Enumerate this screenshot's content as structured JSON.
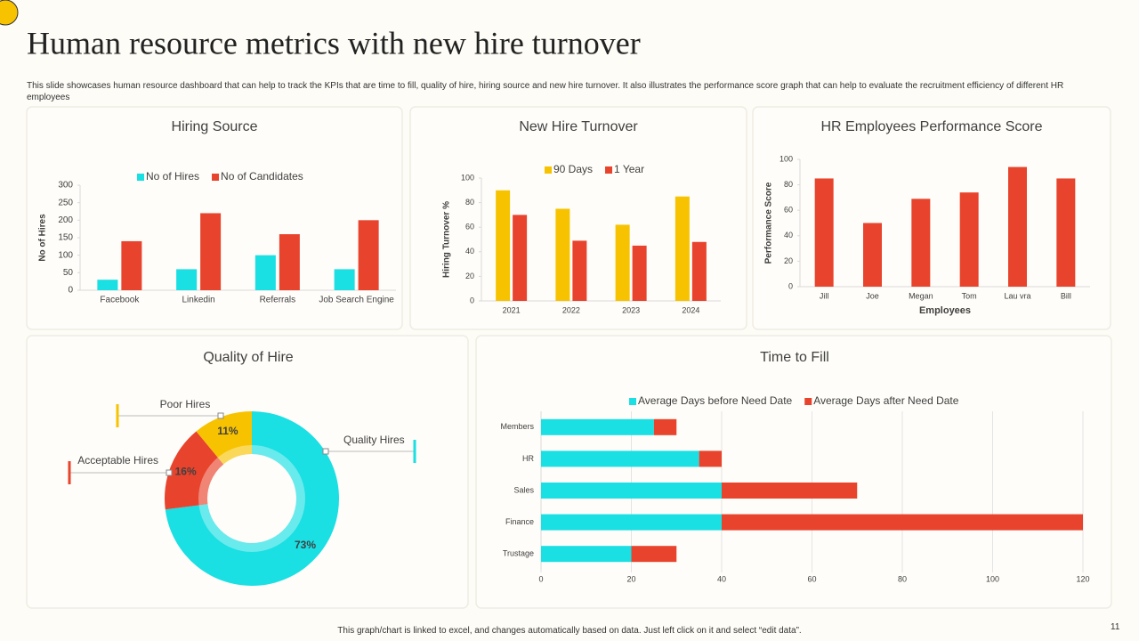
{
  "title": "Human resource metrics with new hire turnover",
  "description": "This slide showcases human resource dashboard that can help to track the KPIs  that are time  to fill, quality of hire, hiring source and new hire turnover. It also illustrates the performance score graph that can help to evaluate the recruitment efficiency of different HR employees",
  "footer": "This graph/chart is linked to excel, and changes automatically based on data. Just left click on it and select “edit data”.",
  "page_number": "11",
  "chart_data": [
    {
      "type": "bar",
      "title": "Hiring Source",
      "y_label": "No of Hires",
      "categories": [
        "Facebook",
        "Linkedin",
        "Referrals",
        "Job Search Engine"
      ],
      "series": [
        {
          "name": "No of Hires",
          "color": "#1adfe3",
          "values": [
            30,
            60,
            100,
            60
          ]
        },
        {
          "name": "No of Candidates",
          "color": "#e8432c",
          "values": [
            140,
            220,
            160,
            200
          ]
        }
      ],
      "ylim": [
        0,
        300
      ],
      "yticks": [
        0,
        50,
        100,
        150,
        200,
        250,
        300
      ],
      "grid": false,
      "legend": "top"
    },
    {
      "type": "bar",
      "title": "New Hire Turnover",
      "y_label": "Hiring Turnover %",
      "categories": [
        "2021",
        "2022",
        "2023",
        "2024"
      ],
      "series": [
        {
          "name": "90 Days",
          "color": "#f7c300",
          "values": [
            90,
            75,
            62,
            85
          ]
        },
        {
          "name": "1 Year",
          "color": "#e8432c",
          "values": [
            70,
            49,
            45,
            48
          ]
        }
      ],
      "ylim": [
        0,
        100
      ],
      "yticks": [
        0,
        20,
        40,
        60,
        80,
        100
      ],
      "grid": false,
      "legend": "top"
    },
    {
      "type": "bar",
      "title": "HR Employees Performance Score",
      "y_label": "Performance Score",
      "x_label": "Employees",
      "categories": [
        "Jill",
        "Joe",
        "Megan",
        "Tom",
        "Lau vra",
        "Bill"
      ],
      "series": [
        {
          "color": "#e8432c",
          "values": [
            85,
            50,
            69,
            74,
            94,
            85
          ]
        }
      ],
      "ylim": [
        0,
        100
      ],
      "yticks": [
        0,
        20,
        40,
        60,
        80,
        100
      ],
      "grid": false
    },
    {
      "type": "pie",
      "title": "Quality of Hire",
      "categories": [
        "Quality Hires",
        "Acceptable Hires",
        "Poor Hires"
      ],
      "values": [
        73,
        16,
        11
      ],
      "value_labels": [
        "73%",
        "16%",
        "11%"
      ],
      "colors": [
        "#1adfe3",
        "#e8432c",
        "#f7c300"
      ]
    },
    {
      "type": "hbar",
      "title": "Time to Fill",
      "categories": [
        "Members",
        "HR",
        "Sales",
        "Finance",
        "Trustage"
      ],
      "series": [
        {
          "name": "Average Days before Need Date",
          "color": "#1adfe3",
          "values": [
            25,
            35,
            40,
            40,
            20
          ]
        },
        {
          "name": "Average Days after Need Date",
          "color": "#e8432c",
          "values": [
            5,
            5,
            30,
            80,
            10
          ]
        }
      ],
      "xlim": [
        0,
        120
      ],
      "xticks": [
        0,
        20,
        40,
        60,
        80,
        100,
        120
      ],
      "grid": true,
      "stacked": true,
      "legend": "top"
    }
  ]
}
